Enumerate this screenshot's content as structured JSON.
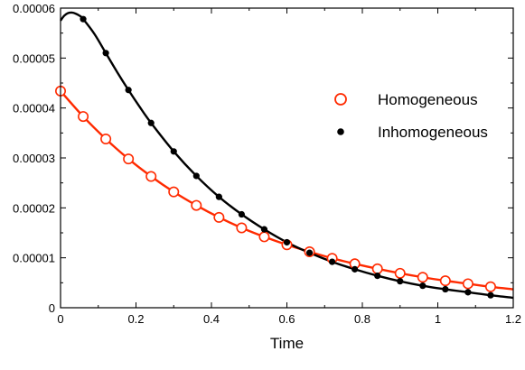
{
  "chart_data": {
    "type": "line",
    "xlabel": "Time",
    "ylabel": "",
    "xlim": [
      0,
      1.2
    ],
    "ylim": [
      0,
      6e-05
    ],
    "x_ticks": [
      0,
      0.2,
      0.4,
      0.6,
      0.8,
      1,
      1.2
    ],
    "x_tick_labels": [
      "0",
      "0.2",
      "0.4",
      "0.6",
      "0.8",
      "1",
      "1.2"
    ],
    "y_ticks": [
      0,
      1e-05,
      2e-05,
      3e-05,
      4e-05,
      5e-05,
      6e-05
    ],
    "y_tick_labels": [
      "0",
      "0.00001",
      "0.00002",
      "0.00003",
      "0.00004",
      "0.00005",
      "0.00006"
    ],
    "grid": false,
    "legend_position": "right",
    "series": [
      {
        "name": "Homogeneous",
        "color": "#ff2a00",
        "marker": "open-circle",
        "curve": {
          "x": [
            0,
            0.06,
            0.12,
            0.18,
            0.24,
            0.3,
            0.36,
            0.42,
            0.48,
            0.54,
            0.6,
            0.66,
            0.72,
            0.78,
            0.84,
            0.9,
            0.96,
            1.02,
            1.08,
            1.14,
            1.2
          ],
          "y": [
            4.34e-05,
            3.83e-05,
            3.38e-05,
            2.98e-05,
            2.63e-05,
            2.32e-05,
            2.05e-05,
            1.81e-05,
            1.6e-05,
            1.42e-05,
            1.26e-05,
            1.12e-05,
            9.9e-06,
            8.8e-06,
            7.8e-06,
            6.9e-06,
            6.1e-06,
            5.4e-06,
            4.8e-06,
            4.2e-06,
            3.7e-06
          ]
        },
        "points": {
          "x": [
            0,
            0.06,
            0.12,
            0.18,
            0.24,
            0.3,
            0.36,
            0.42,
            0.48,
            0.54,
            0.6,
            0.66,
            0.72,
            0.78,
            0.84,
            0.9,
            0.96,
            1.02,
            1.08,
            1.14
          ],
          "y": [
            4.34e-05,
            3.83e-05,
            3.38e-05,
            2.98e-05,
            2.63e-05,
            2.32e-05,
            2.05e-05,
            1.81e-05,
            1.6e-05,
            1.42e-05,
            1.26e-05,
            1.12e-05,
            9.9e-06,
            8.8e-06,
            7.8e-06,
            6.9e-06,
            6.1e-06,
            5.4e-06,
            4.8e-06,
            4.2e-06
          ]
        }
      },
      {
        "name": "Inhomogeneous",
        "color": "#000000",
        "marker": "filled-circle",
        "curve": {
          "x": [
            0,
            0.01,
            0.02,
            0.03,
            0.04,
            0.05,
            0.06,
            0.09,
            0.12,
            0.15,
            0.18,
            0.21,
            0.24,
            0.3,
            0.36,
            0.42,
            0.48,
            0.54,
            0.6,
            0.66,
            0.72,
            0.78,
            0.84,
            0.9,
            0.96,
            1.02,
            1.08,
            1.14,
            1.2
          ],
          "y": [
            5.75e-05,
            5.85e-05,
            5.9e-05,
            5.91e-05,
            5.89e-05,
            5.85e-05,
            5.78e-05,
            5.48e-05,
            5.1e-05,
            4.72e-05,
            4.36e-05,
            4.02e-05,
            3.7e-05,
            3.13e-05,
            2.64e-05,
            2.22e-05,
            1.87e-05,
            1.57e-05,
            1.31e-05,
            1.1e-05,
            9.2e-06,
            7.7e-06,
            6.4e-06,
            5.3e-06,
            4.4e-06,
            3.7e-06,
            3.1e-06,
            2.5e-06,
            2e-06
          ]
        },
        "points": {
          "x": [
            0.06,
            0.12,
            0.18,
            0.24,
            0.3,
            0.36,
            0.42,
            0.48,
            0.54,
            0.6,
            0.66,
            0.72,
            0.78,
            0.84,
            0.9,
            0.96,
            1.02,
            1.08,
            1.14
          ],
          "y": [
            5.78e-05,
            5.1e-05,
            4.36e-05,
            3.7e-05,
            3.13e-05,
            2.64e-05,
            2.22e-05,
            1.87e-05,
            1.57e-05,
            1.31e-05,
            1.1e-05,
            9.2e-06,
            7.7e-06,
            6.4e-06,
            5.3e-06,
            4.4e-06,
            3.7e-06,
            3.1e-06,
            2.5e-06
          ]
        }
      }
    ]
  }
}
